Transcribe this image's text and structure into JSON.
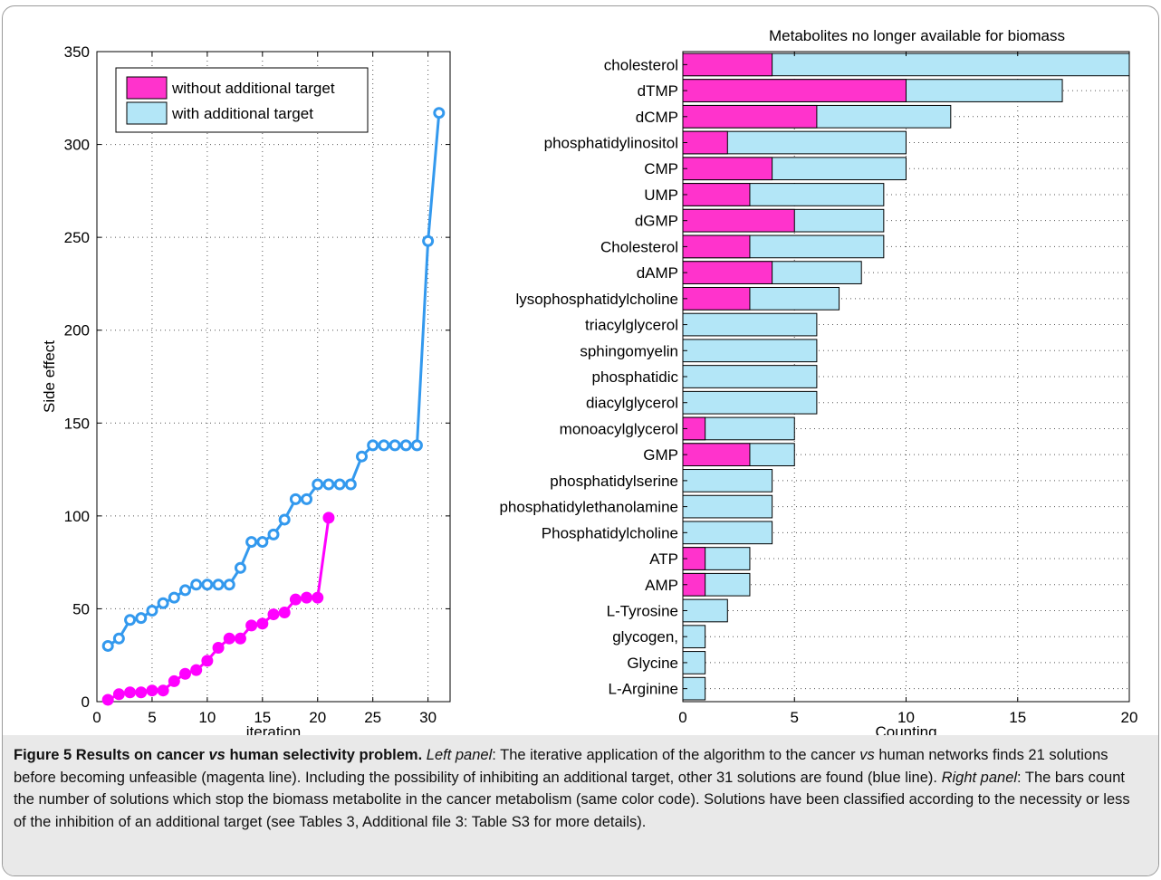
{
  "chart_data": [
    {
      "type": "line",
      "xlabel": "iteration",
      "ylabel": "Side effect",
      "xlim": [
        0,
        32
      ],
      "ylim": [
        0,
        350
      ],
      "xticks": [
        0,
        5,
        10,
        15,
        20,
        25,
        30
      ],
      "yticks": [
        0,
        50,
        100,
        150,
        200,
        250,
        300,
        350
      ],
      "grid": true,
      "legend_position": "top-left",
      "legend": [
        "without additional target",
        "with additional target"
      ],
      "series": [
        {
          "name": "without additional target",
          "color": "#ff00ff",
          "marker": "filled-circle",
          "x": [
            1,
            2,
            3,
            4,
            5,
            6,
            7,
            8,
            9,
            10,
            11,
            12,
            13,
            14,
            15,
            16,
            17,
            18,
            19,
            20,
            21
          ],
          "y": [
            1,
            4,
            5,
            5,
            6,
            6,
            11,
            15,
            17,
            22,
            29,
            34,
            34,
            41,
            42,
            47,
            48,
            55,
            56,
            56,
            99
          ]
        },
        {
          "name": "with additional target",
          "color": "#3399ee",
          "marker": "open-circle",
          "x": [
            1,
            2,
            3,
            4,
            5,
            6,
            7,
            8,
            9,
            10,
            11,
            12,
            13,
            14,
            15,
            16,
            17,
            18,
            19,
            20,
            21,
            22,
            23,
            24,
            25,
            26,
            27,
            28,
            29,
            30,
            31
          ],
          "y": [
            30,
            34,
            44,
            45,
            49,
            53,
            56,
            60,
            63,
            63,
            63,
            63,
            72,
            86,
            86,
            90,
            98,
            109,
            109,
            117,
            117,
            117,
            117,
            132,
            138,
            138,
            138,
            138,
            138,
            248,
            317
          ]
        }
      ]
    },
    {
      "type": "bar",
      "orientation": "horizontal",
      "stacking": "overlay",
      "title": "Metabolites no longer available for biomass",
      "xlabel": "Counting",
      "ylabel": "",
      "xlim": [
        0,
        20
      ],
      "xticks": [
        0,
        5,
        10,
        15,
        20
      ],
      "grid": true,
      "categories": [
        "cholesterol",
        "dTMP",
        "dCMP",
        "phosphatidylinositol",
        "CMP",
        "UMP",
        "dGMP",
        "Cholesterol",
        "dAMP",
        "lysophosphatidylcholine",
        "triacylglycerol",
        "sphingomyelin",
        "phosphatidic",
        "diacylglycerol",
        "monoacylglycerol",
        "GMP",
        "phosphatidylserine",
        "phosphatidylethanolamine",
        "Phosphatidylcholine",
        "ATP",
        "AMP",
        "L-Tyrosine",
        "glycogen,",
        "Glycine",
        "L-Arginine"
      ],
      "series": [
        {
          "name": "with additional target",
          "color": "#b3e6f7",
          "values": [
            20,
            17,
            12,
            10,
            10,
            9,
            9,
            9,
            8,
            7,
            6,
            6,
            6,
            6,
            5,
            5,
            4,
            4,
            4,
            3,
            3,
            2,
            1,
            1,
            1
          ]
        },
        {
          "name": "without additional target",
          "color": "#ff33cc",
          "values": [
            4,
            10,
            6,
            2,
            4,
            3,
            5,
            3,
            4,
            3,
            0,
            0,
            0,
            0,
            1,
            3,
            0,
            0,
            0,
            1,
            1,
            0,
            0,
            0,
            0
          ]
        }
      ]
    }
  ],
  "caption": {
    "fig_label": "Figure 5",
    "title_a": " Results on cancer ",
    "title_vs": "vs",
    "title_b": " human selectivity problem.",
    "left_label": "Left panel",
    "text_1": ": The iterative application of the algorithm to the cancer ",
    "vs": "vs",
    "text_2": " human networks finds 21 solutions before becoming unfeasible (magenta line). Including the possibility of inhibiting an additional target, other 31 solutions are found (blue line). ",
    "right_label": "Right panel",
    "text_3": ": The bars count the number of solutions which stop the biomass metabolite in the cancer metabolism (same color code). Solutions have been classified according to the necessity or less of the inhibition of an additional target (see Tables 3, Additional file 3: Table S3 for more details)."
  }
}
